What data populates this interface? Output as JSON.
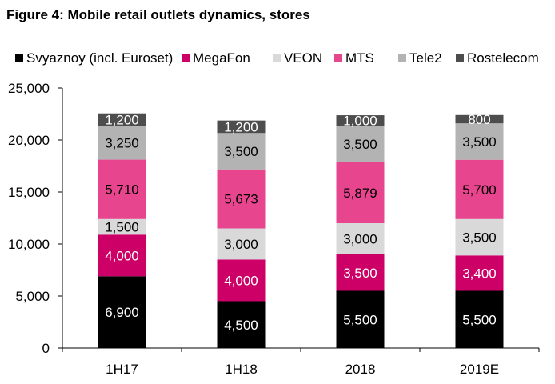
{
  "title": "Figure 4: Mobile retail outlets dynamics, stores",
  "chart_data": {
    "type": "bar",
    "stacked": true,
    "categories": [
      "1H17",
      "1H18",
      "2018",
      "2019E"
    ],
    "series": [
      {
        "name": "Svyaznoy (incl. Euroset)",
        "color": "#000000",
        "label_color": "#ffffff",
        "values": [
          6900,
          4500,
          5500,
          5500
        ],
        "labels": [
          "6,900",
          "4,500",
          "5,500",
          "5,500"
        ]
      },
      {
        "name": "MegaFon",
        "color": "#cc0066",
        "label_color": "#ffffff",
        "values": [
          4000,
          4000,
          3500,
          3400
        ],
        "labels": [
          "4,000",
          "4,000",
          "3,500",
          "3,400"
        ]
      },
      {
        "name": "VEON",
        "color": "#d9d9d9",
        "label_color": "#000000",
        "values": [
          1500,
          3000,
          3000,
          3500
        ],
        "labels": [
          "1,500",
          "3,000",
          "3,000",
          "3,500"
        ]
      },
      {
        "name": "MTS",
        "color": "#e8458f",
        "label_color": "#000000",
        "values": [
          5710,
          5673,
          5879,
          5700
        ],
        "labels": [
          "5,710",
          "5,673",
          "5,879",
          "5,700"
        ]
      },
      {
        "name": "Tele2",
        "color": "#b3b3b3",
        "label_color": "#000000",
        "values": [
          3250,
          3500,
          3500,
          3500
        ],
        "labels": [
          "3,250",
          "3,500",
          "3,500",
          "3,500"
        ]
      },
      {
        "name": "Rostelecom",
        "color": "#4d4d4d",
        "label_color": "#ffffff",
        "values": [
          1200,
          1200,
          1000,
          800
        ],
        "labels": [
          "1,200",
          "1,200",
          "1,000",
          "800"
        ]
      }
    ],
    "yticks": [
      0,
      5000,
      10000,
      15000,
      20000,
      25000
    ],
    "ytick_labels": [
      "0",
      "5,000",
      "10,000",
      "15,000",
      "20,000",
      "25,000"
    ],
    "ylim": [
      0,
      25000
    ],
    "xlabel": "",
    "ylabel": "",
    "grid": false,
    "legend_position": "top"
  }
}
